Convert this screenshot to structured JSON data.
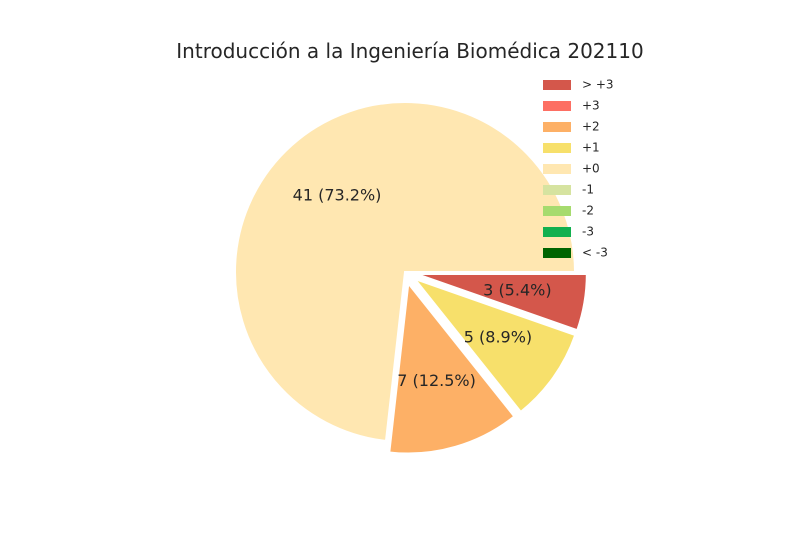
{
  "chart_data": {
    "type": "pie",
    "title": "Introducción a la Ingeniería Biomédica 202110",
    "slices": [
      {
        "name": "> +3",
        "value": 3,
        "label": "3 (5.4%)",
        "color": "#d4574b",
        "explode": true
      },
      {
        "name": "+2",
        "value": 7,
        "label": "7 (12.5%)",
        "color": "#fdb066",
        "explode": true
      },
      {
        "name": "+1",
        "value": 5,
        "label": "5 (8.9%)",
        "color": "#f7e06b",
        "explode": true
      },
      {
        "name": "+0",
        "value": 41,
        "label": "41 (73.2%)",
        "color": "#ffe7b1",
        "explode": false
      }
    ],
    "slice_order": [
      "> +3",
      "+1",
      "+2",
      "+0"
    ],
    "legend": [
      {
        "name": "> +3",
        "color": "#d4574b"
      },
      {
        "name": "+3",
        "color": "#fd6f63"
      },
      {
        "name": "+2",
        "color": "#fdb066"
      },
      {
        "name": "+1",
        "color": "#f7e06b"
      },
      {
        "name": "+0",
        "color": "#ffe7b1"
      },
      {
        "name": "-1",
        "color": "#d6e3a0"
      },
      {
        "name": "-2",
        "color": "#a6db6e"
      },
      {
        "name": "-3",
        "color": "#12b04f"
      },
      {
        "name": "< -3",
        "color": "#006400"
      }
    ],
    "legend_position": "top-right"
  }
}
